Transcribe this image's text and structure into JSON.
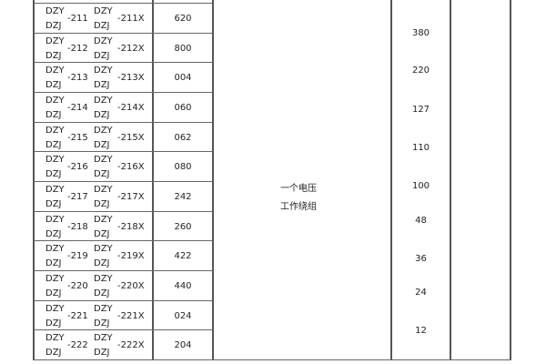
{
  "rows": [
    {
      "a_top": "DZY",
      "a_bot": "DZJ",
      "a_num": "-211",
      "b_top": "DZY",
      "b_bot": "DZJ",
      "b_num": "-211X",
      "code": "620"
    },
    {
      "a_top": "DZY",
      "a_bot": "DZJ",
      "a_num": "-212",
      "b_top": "DZY",
      "b_bot": "DZJ",
      "b_num": "-212X",
      "code": "800"
    },
    {
      "a_top": "DZY",
      "a_bot": "DZJ",
      "a_num": "-213",
      "b_top": "DZY",
      "b_bot": "DZJ",
      "b_num": "-213X",
      "code": "004"
    },
    {
      "a_top": "DZY",
      "a_bot": "DZJ",
      "a_num": "-214",
      "b_top": "DZY",
      "b_bot": "DZJ",
      "b_num": "-214X",
      "code": "060"
    },
    {
      "a_top": "DZY",
      "a_bot": "DZJ",
      "a_num": "-215",
      "b_top": "DZY",
      "b_bot": "DZJ",
      "b_num": "-215X",
      "code": "062"
    },
    {
      "a_top": "DZY",
      "a_bot": "DZJ",
      "a_num": "-216",
      "b_top": "DZY",
      "b_bot": "DZJ",
      "b_num": "-216X",
      "code": "080"
    },
    {
      "a_top": "DZY",
      "a_bot": "DZJ",
      "a_num": "-217",
      "b_top": "DZY",
      "b_bot": "DZJ",
      "b_num": "-217X",
      "code": "242"
    },
    {
      "a_top": "DZY",
      "a_bot": "DZJ",
      "a_num": "-218",
      "b_top": "DZY",
      "b_bot": "DZJ",
      "b_num": "-218X",
      "code": "260"
    },
    {
      "a_top": "DZY",
      "a_bot": "DZJ",
      "a_num": "-219",
      "b_top": "DZY",
      "b_bot": "DZJ",
      "b_num": "-219X",
      "code": "422"
    },
    {
      "a_top": "DZY",
      "a_bot": "DZJ",
      "a_num": "-220",
      "b_top": "DZY",
      "b_bot": "DZJ",
      "b_num": "-220X",
      "code": "440"
    },
    {
      "a_top": "DZY",
      "a_bot": "DZJ",
      "a_num": "-221",
      "b_top": "DZY",
      "b_bot": "DZJ",
      "b_num": "-221X",
      "code": "024"
    },
    {
      "a_top": "DZY",
      "a_bot": "DZJ",
      "a_num": "-222",
      "b_top": "DZY",
      "b_bot": "DZJ",
      "b_num": "-222X",
      "code": "204"
    }
  ],
  "winding": {
    "line1": "一个电压",
    "line2": "工作绕组"
  },
  "voltages": [
    "380",
    "220",
    "127",
    "110",
    "100",
    "48",
    "36",
    "24",
    "12"
  ]
}
